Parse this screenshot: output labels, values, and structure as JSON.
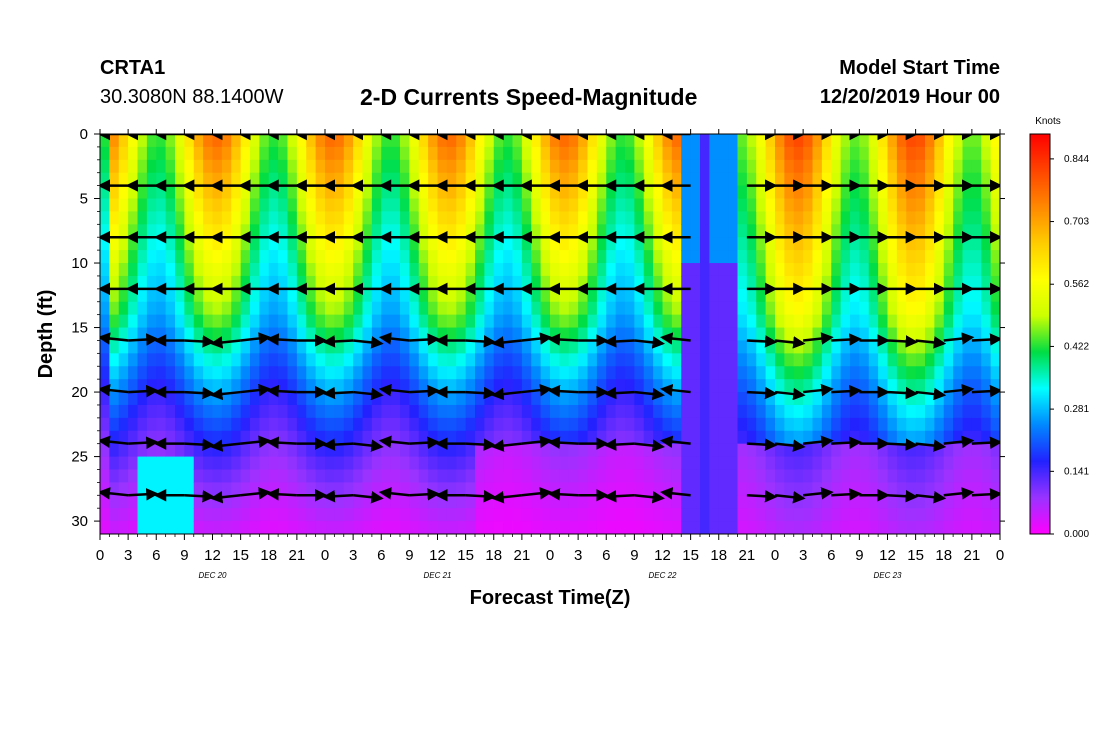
{
  "header": {
    "station": "CRTA1",
    "coords": "30.3080N 88.1400W",
    "title": "2-D Currents Speed-Magnitude",
    "model_start_label": "Model Start Time",
    "model_start_value": "12/20/2019 Hour 00"
  },
  "chart_data": {
    "type": "heatmap",
    "title": "2-D Currents Speed-Magnitude",
    "xlabel": "Forecast Time(Z)",
    "ylabel": "Depth (ft)",
    "xlim": [
      0,
      96
    ],
    "ylim": [
      31,
      0
    ],
    "x_ticks": [
      "0",
      "3",
      "6",
      "9",
      "12",
      "15",
      "18",
      "21",
      "0",
      "3",
      "6",
      "9",
      "12",
      "15",
      "18",
      "21",
      "0",
      "3",
      "6",
      "9",
      "12",
      "15",
      "18",
      "21",
      "0",
      "3",
      "6",
      "9",
      "12",
      "15",
      "18",
      "21",
      "0"
    ],
    "x_day_labels": [
      {
        "label": "DEC 20",
        "hour": 12
      },
      {
        "label": "DEC 21",
        "hour": 36
      },
      {
        "label": "DEC 22",
        "hour": 60
      },
      {
        "label": "DEC 23",
        "hour": 84
      }
    ],
    "y_ticks": [
      0,
      5,
      10,
      15,
      20,
      25,
      30
    ],
    "colorbar": {
      "unit": "Knots",
      "min": 0,
      "max": 0.9,
      "labels": [
        "0.844",
        "0.703",
        "0.562",
        "0.422",
        "0.281",
        "0.141",
        "0.000"
      ],
      "label_values": [
        0.844,
        0.703,
        0.562,
        0.422,
        0.281,
        0.141,
        0.0
      ],
      "colors": [
        "#ff00ff",
        "#9933ff",
        "#2222ff",
        "#0088ff",
        "#00ffff",
        "#00dd44",
        "#ccff00",
        "#ffff00",
        "#ffcc00",
        "#ff8800",
        "#ff4400",
        "#ff0000"
      ]
    },
    "vector_depths": [
      0,
      4,
      8,
      12,
      16,
      20,
      24,
      28
    ]
  }
}
